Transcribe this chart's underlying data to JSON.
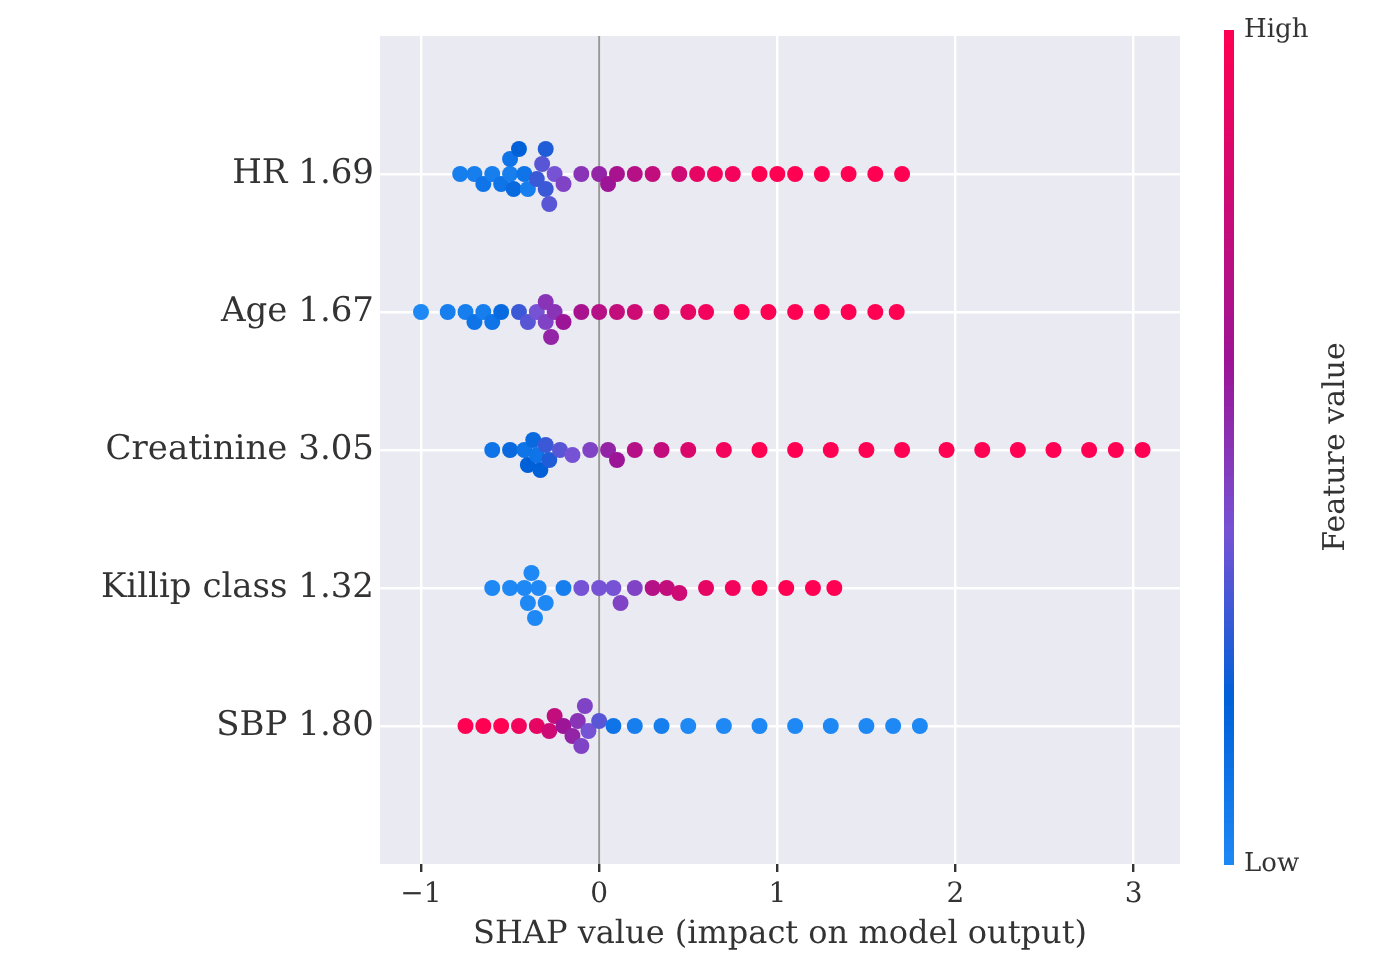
{
  "chart_data": {
    "type": "scatter",
    "orientation": "horizontal",
    "xlabel": "SHAP value (impact on model output)",
    "clabel": "Feature value",
    "categories": [
      "HR 1.69",
      "Age 1.67",
      "Creatinine 3.05",
      "Killip class 1.32",
      "SBP 1.80"
    ],
    "xlim": [
      -1.23,
      3.26
    ],
    "xticks": [
      {
        "value": -1,
        "label": "−1"
      },
      0,
      1,
      2,
      3
    ],
    "clim": [
      0,
      1
    ],
    "cticks": [
      {
        "value": 0,
        "label": "Low"
      },
      {
        "value": 1,
        "label": "High"
      }
    ],
    "grid": true,
    "marker": "circle",
    "ref_lines": [
      {
        "axis": "x",
        "value": 0,
        "color": "#999999"
      }
    ],
    "series": [
      {
        "x": [
          "HR 1.69",
          "HR 1.69",
          "HR 1.69",
          "HR 1.69",
          "HR 1.69",
          "HR 1.69",
          "HR 1.69",
          "HR 1.69",
          "HR 1.69",
          "HR 1.69",
          "HR 1.69",
          "HR 1.69",
          "HR 1.69",
          "HR 1.69",
          "HR 1.69",
          "HR 1.69",
          "HR 1.69",
          "HR 1.69",
          "HR 1.69",
          "HR 1.69",
          "HR 1.69",
          "HR 1.69",
          "HR 1.69",
          "HR 1.69",
          "HR 1.69",
          "HR 1.69",
          "HR 1.69",
          "HR 1.69",
          "HR 1.69",
          "HR 1.69",
          "HR 1.69",
          "HR 1.69",
          "HR 1.69",
          "HR 1.69",
          "HR 1.69"
        ],
        "values": [
          -0.78,
          -0.7,
          -0.65,
          -0.6,
          -0.55,
          -0.5,
          -0.5,
          -0.48,
          -0.45,
          -0.42,
          -0.4,
          -0.35,
          -0.32,
          -0.3,
          -0.3,
          -0.28,
          -0.25,
          -0.2,
          -0.1,
          0,
          0.05,
          0.1,
          0.2,
          0.3,
          0.45,
          0.55,
          0.65,
          0.75,
          0.9,
          1.0,
          1.1,
          1.25,
          1.4,
          1.55,
          1.7
        ],
        "colors": [
          "#177eee",
          "#177eee",
          "#0f74e7",
          "#177eee",
          "#0f74e7",
          "#177eee",
          "#0f74e7",
          "#086ade",
          "#0060d8",
          "#0f74e7",
          "#177eee",
          "#3b59d6",
          "#5956d5",
          "#3b59d6",
          "#1e5dd7",
          "#5956d5",
          "#7652d4",
          "#8043c5",
          "#8934b6",
          "#9324a6",
          "#9c1597",
          "#a9128e",
          "#b51086",
          "#c20d7d",
          "#ce0b75",
          "#e70563",
          "#f3035b",
          "#f3035b",
          "#ff0052",
          "#ff0052",
          "#ff0052",
          "#ff0052",
          "#ff0052",
          "#ff0052",
          "#ff0052"
        ]
      },
      {
        "x": [
          "Age 1.67",
          "Age 1.67",
          "Age 1.67",
          "Age 1.67",
          "Age 1.67",
          "Age 1.67",
          "Age 1.67",
          "Age 1.67",
          "Age 1.67",
          "Age 1.67",
          "Age 1.67",
          "Age 1.67",
          "Age 1.67",
          "Age 1.67",
          "Age 1.67",
          "Age 1.67",
          "Age 1.67",
          "Age 1.67",
          "Age 1.67",
          "Age 1.67",
          "Age 1.67",
          "Age 1.67",
          "Age 1.67",
          "Age 1.67",
          "Age 1.67",
          "Age 1.67",
          "Age 1.67",
          "Age 1.67",
          "Age 1.67"
        ],
        "values": [
          -1.0,
          -0.85,
          -0.75,
          -0.7,
          -0.65,
          -0.6,
          -0.55,
          -0.45,
          -0.4,
          -0.35,
          -0.3,
          -0.3,
          -0.27,
          -0.25,
          -0.2,
          -0.1,
          0,
          0.1,
          0.2,
          0.35,
          0.5,
          0.6,
          0.8,
          0.95,
          1.1,
          1.25,
          1.4,
          1.55,
          1.67
        ],
        "colors": [
          "#1e88f5",
          "#177eee",
          "#177eee",
          "#0f74e7",
          "#177eee",
          "#0f74e7",
          "#086ade",
          "#3b59d6",
          "#5956d5",
          "#7652d4",
          "#8043c5",
          "#8934b6",
          "#9324a6",
          "#8934b6",
          "#9c1597",
          "#a9128e",
          "#b51086",
          "#c20d7d",
          "#ce0b75",
          "#db086c",
          "#e70563",
          "#f3035b",
          "#ff0052",
          "#ff0052",
          "#ff0052",
          "#ff0052",
          "#ff0052",
          "#ff0052",
          "#ff0052"
        ]
      },
      {
        "x": [
          "Creatinine 3.05",
          "Creatinine 3.05",
          "Creatinine 3.05",
          "Creatinine 3.05",
          "Creatinine 3.05",
          "Creatinine 3.05",
          "Creatinine 3.05",
          "Creatinine 3.05",
          "Creatinine 3.05",
          "Creatinine 3.05",
          "Creatinine 3.05",
          "Creatinine 3.05",
          "Creatinine 3.05",
          "Creatinine 3.05",
          "Creatinine 3.05",
          "Creatinine 3.05",
          "Creatinine 3.05",
          "Creatinine 3.05",
          "Creatinine 3.05",
          "Creatinine 3.05",
          "Creatinine 3.05",
          "Creatinine 3.05",
          "Creatinine 3.05",
          "Creatinine 3.05",
          "Creatinine 3.05",
          "Creatinine 3.05",
          "Creatinine 3.05",
          "Creatinine 3.05",
          "Creatinine 3.05",
          "Creatinine 3.05"
        ],
        "values": [
          -0.6,
          -0.5,
          -0.42,
          -0.4,
          -0.37,
          -0.35,
          -0.33,
          -0.3,
          -0.28,
          -0.22,
          -0.15,
          -0.05,
          0.05,
          0.1,
          0.2,
          0.35,
          0.5,
          0.7,
          0.9,
          1.1,
          1.3,
          1.5,
          1.7,
          1.95,
          2.15,
          2.35,
          2.55,
          2.75,
          2.9,
          3.05
        ],
        "colors": [
          "#0f74e7",
          "#086ade",
          "#0f74e7",
          "#0060d8",
          "#086ade",
          "#0f74e7",
          "#0060d8",
          "#3b59d6",
          "#1e5dd7",
          "#5956d5",
          "#7652d4",
          "#8043c5",
          "#9324a6",
          "#9c1597",
          "#b51086",
          "#c20d7d",
          "#db086c",
          "#f3035b",
          "#ff0052",
          "#ff0052",
          "#ff0052",
          "#ff0052",
          "#ff0052",
          "#ff0052",
          "#ff0052",
          "#ff0052",
          "#ff0052",
          "#ff0052",
          "#ff0052",
          "#ff0052"
        ]
      },
      {
        "x": [
          "Killip class 1.32",
          "Killip class 1.32",
          "Killip class 1.32",
          "Killip class 1.32",
          "Killip class 1.32",
          "Killip class 1.32",
          "Killip class 1.32",
          "Killip class 1.32",
          "Killip class 1.32",
          "Killip class 1.32",
          "Killip class 1.32",
          "Killip class 1.32",
          "Killip class 1.32",
          "Killip class 1.32",
          "Killip class 1.32",
          "Killip class 1.32",
          "Killip class 1.32",
          "Killip class 1.32",
          "Killip class 1.32",
          "Killip class 1.32",
          "Killip class 1.32",
          "Killip class 1.32",
          "Killip class 1.32"
        ],
        "values": [
          -0.6,
          -0.5,
          -0.42,
          -0.4,
          -0.38,
          -0.36,
          -0.34,
          -0.3,
          -0.2,
          -0.1,
          0,
          0.08,
          0.12,
          0.2,
          0.3,
          0.38,
          0.45,
          0.6,
          0.75,
          0.9,
          1.05,
          1.2,
          1.32
        ],
        "colors": [
          "#1e88f5",
          "#1e88f5",
          "#1e88f5",
          "#1e88f5",
          "#1e88f5",
          "#1e88f5",
          "#1e88f5",
          "#1e88f5",
          "#177eee",
          "#7652d4",
          "#7652d4",
          "#7652d4",
          "#8043c5",
          "#8043c5",
          "#b51086",
          "#c20d7d",
          "#ce0b75",
          "#e70563",
          "#f3035b",
          "#ff0052",
          "#ff0052",
          "#ff0052",
          "#ff0052"
        ]
      },
      {
        "x": [
          "SBP 1.80",
          "SBP 1.80",
          "SBP 1.80",
          "SBP 1.80",
          "SBP 1.80",
          "SBP 1.80",
          "SBP 1.80",
          "SBP 1.80",
          "SBP 1.80",
          "SBP 1.80",
          "SBP 1.80",
          "SBP 1.80",
          "SBP 1.80",
          "SBP 1.80",
          "SBP 1.80",
          "SBP 1.80",
          "SBP 1.80",
          "SBP 1.80",
          "SBP 1.80",
          "SBP 1.80",
          "SBP 1.80",
          "SBP 1.80",
          "SBP 1.80",
          "SBP 1.80",
          "SBP 1.80"
        ],
        "values": [
          -0.75,
          -0.65,
          -0.55,
          -0.45,
          -0.35,
          -0.28,
          -0.25,
          -0.2,
          -0.15,
          -0.12,
          -0.1,
          -0.08,
          -0.06,
          0,
          0.08,
          0.2,
          0.35,
          0.5,
          0.7,
          0.9,
          1.1,
          1.3,
          1.5,
          1.65,
          1.8
        ],
        "colors": [
          "#ff0052",
          "#ff0052",
          "#ff0052",
          "#f3035b",
          "#e70563",
          "#ce0b75",
          "#c20d7d",
          "#9c1597",
          "#9324a6",
          "#8934b6",
          "#8043c5",
          "#8043c5",
          "#7652d4",
          "#5956d5",
          "#0f74e7",
          "#177eee",
          "#177eee",
          "#1e88f5",
          "#1e88f5",
          "#1e88f5",
          "#1e88f5",
          "#1e88f5",
          "#1e88f5",
          "#1e88f5",
          "#1e88f5"
        ]
      }
    ]
  }
}
